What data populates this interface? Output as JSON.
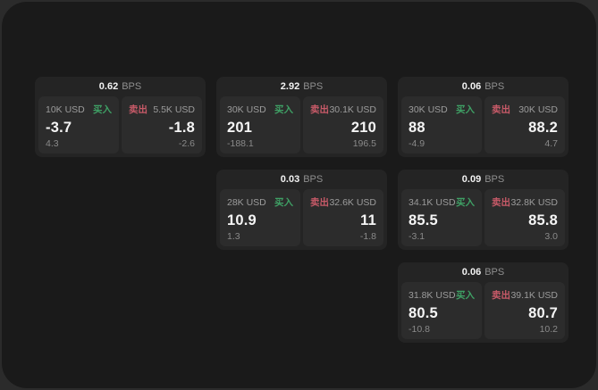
{
  "labels": {
    "bps_unit": "BPS",
    "buy": "买入",
    "sell": "卖出"
  },
  "colors": {
    "page_background": "#2b2b2b",
    "panel_background": "#1a1a1a",
    "card_background": "#242424",
    "tile_background": "#2c2c2c",
    "buy_accent": "#3fa065",
    "sell_accent": "#c75a68",
    "primary_text": "#f5f5f5",
    "muted_text": "#9c9c9c"
  },
  "cards": [
    {
      "bps": "0.62",
      "buy": {
        "amount": "10K USD",
        "value": "-3.7",
        "delta": "4.3"
      },
      "sell": {
        "amount": "5.5K USD",
        "value": "-1.8",
        "delta": "-2.6"
      }
    },
    {
      "bps": "2.92",
      "buy": {
        "amount": "30K USD",
        "value": "201",
        "delta": "-188.1"
      },
      "sell": {
        "amount": "30.1K USD",
        "value": "210",
        "delta": "196.5"
      }
    },
    {
      "bps": "0.06",
      "buy": {
        "amount": "30K USD",
        "value": "88",
        "delta": "-4.9"
      },
      "sell": {
        "amount": "30K USD",
        "value": "88.2",
        "delta": "4.7"
      }
    },
    {
      "bps": "0.03",
      "buy": {
        "amount": "28K USD",
        "value": "10.9",
        "delta": "1.3"
      },
      "sell": {
        "amount": "32.6K USD",
        "value": "11",
        "delta": "-1.8"
      }
    },
    {
      "bps": "0.09",
      "buy": {
        "amount": "34.1K USD",
        "value": "85.5",
        "delta": "-3.1"
      },
      "sell": {
        "amount": "32.8K USD",
        "value": "85.8",
        "delta": "3.0"
      }
    },
    {
      "bps": "0.06",
      "buy": {
        "amount": "31.8K USD",
        "value": "80.5",
        "delta": "-10.8"
      },
      "sell": {
        "amount": "39.1K USD",
        "value": "80.7",
        "delta": "10.2"
      }
    }
  ]
}
